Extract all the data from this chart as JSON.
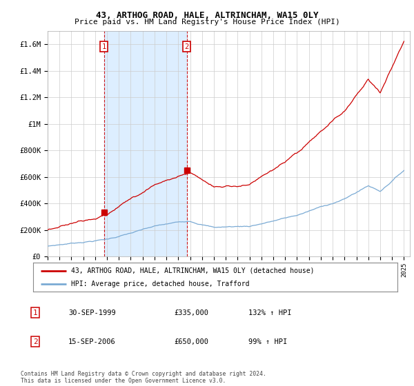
{
  "title": "43, ARTHOG ROAD, HALE, ALTRINCHAM, WA15 0LY",
  "subtitle": "Price paid vs. HM Land Registry's House Price Index (HPI)",
  "ylabel_ticks": [
    "£0",
    "£200K",
    "£400K",
    "£600K",
    "£800K",
    "£1M",
    "£1.2M",
    "£1.4M",
    "£1.6M"
  ],
  "ytick_values": [
    0,
    200000,
    400000,
    600000,
    800000,
    1000000,
    1200000,
    1400000,
    1600000
  ],
  "ylim": [
    0,
    1700000
  ],
  "sale1_x": 1999.75,
  "sale2_x": 2006.71,
  "sale1_price": 335000,
  "sale2_price": 650000,
  "sale1_date": "30-SEP-1999",
  "sale2_date": "15-SEP-2006",
  "sale1_label": "132% ↑ HPI",
  "sale2_label": "99% ↑ HPI",
  "hpi_line_color": "#7aaad4",
  "price_line_color": "#cc0000",
  "vline_color": "#cc0000",
  "shade_color": "#ddeeff",
  "legend_label1": "43, ARTHOG ROAD, HALE, ALTRINCHAM, WA15 0LY (detached house)",
  "legend_label2": "HPI: Average price, detached house, Trafford",
  "footnote": "Contains HM Land Registry data © Crown copyright and database right 2024.\nThis data is licensed under the Open Government Licence v3.0.",
  "background_color": "#ffffff",
  "grid_color": "#cccccc"
}
